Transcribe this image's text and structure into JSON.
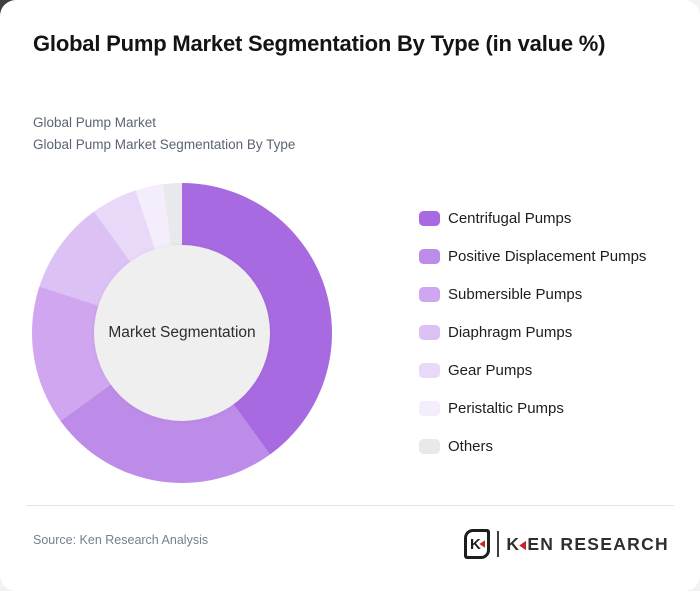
{
  "page": {
    "title": "Global Pump Market Segmentation By Type (in value %)",
    "subtitle_line1": "Global Pump Market",
    "subtitle_line2": "Global Pump Market Segmentation By Type"
  },
  "chart_data": {
    "type": "pie",
    "subtype": "donut",
    "title": "Global Pump Market Segmentation By Type (in value %)",
    "center_label": "Market Segmentation",
    "unit": "% of market value",
    "categories": [
      "Centrifugal Pumps",
      "Positive Displacement Pumps",
      "Submersible Pumps",
      "Diaphragm Pumps",
      "Gear Pumps",
      "Peristaltic Pumps",
      "Others"
    ],
    "values": [
      40,
      25,
      15,
      10,
      5,
      3,
      2
    ],
    "colors": [
      "#a76ae1",
      "#bd8ce9",
      "#cfa6ef",
      "#dcc2f4",
      "#e9d9f8",
      "#f3edfc",
      "#e9e9eb"
    ],
    "start_angle_deg": 0,
    "direction": "clockwise",
    "legend_position": "right",
    "hole_color": "#f0efef"
  },
  "footer": {
    "source": "Source: Ken Research Analysis",
    "logo": {
      "emblem_letter": "K",
      "brand_first_letter": "K",
      "brand_remainder": "EN RESEARCH",
      "accent_color": "#c5242c"
    }
  }
}
